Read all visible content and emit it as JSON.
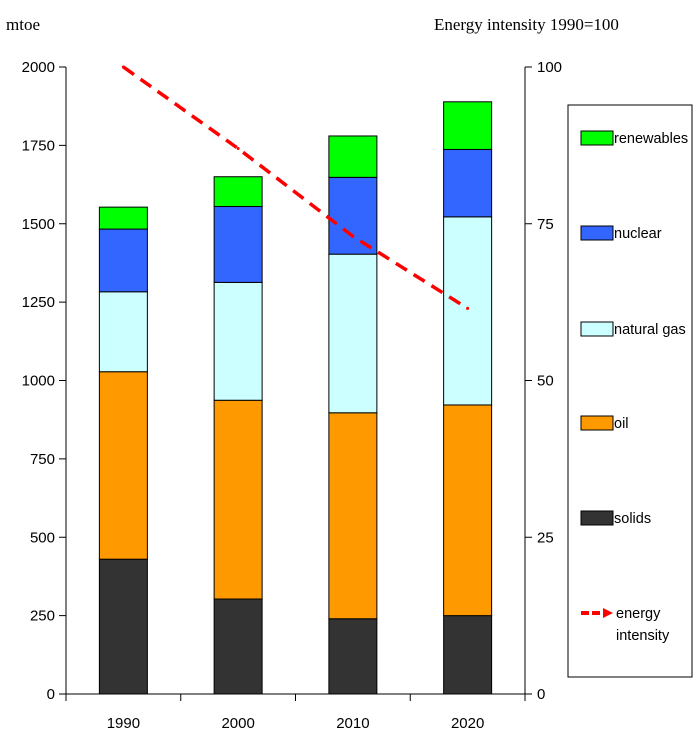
{
  "chart_data": {
    "type": "bar",
    "stacked": true,
    "left_axis_unit": "mtoe",
    "right_axis_unit": "Energy intensity 1990=100",
    "categories": [
      "1990",
      "2000",
      "2010",
      "2020"
    ],
    "y_left": {
      "range": [
        0,
        2000
      ],
      "ticks": [
        "0",
        "250",
        "500",
        "750",
        "1000",
        "1250",
        "1500",
        "1750",
        "2000"
      ]
    },
    "y_right": {
      "range": [
        0,
        100
      ],
      "ticks": [
        "0",
        "25",
        "50",
        "75",
        "100"
      ]
    },
    "series": [
      {
        "name": "solids",
        "color": "#333333",
        "values": [
          430,
          303,
          240,
          250
        ]
      },
      {
        "name": "oil",
        "color": "#ff9900",
        "values": [
          598,
          634,
          657,
          672
        ]
      },
      {
        "name": "natural gas",
        "color": "#ccffff",
        "values": [
          255,
          376,
          506,
          600
        ]
      },
      {
        "name": "nuclear",
        "color": "#3366ff",
        "values": [
          200,
          242,
          245,
          215
        ]
      },
      {
        "name": "renewables",
        "color": "#00ff00",
        "values": [
          70,
          95,
          132,
          152
        ]
      }
    ],
    "line_series": {
      "name": "energy intensity",
      "legend_lines": [
        "energy",
        "intensity"
      ],
      "color": "#ff0000",
      "style": "dashed",
      "axis": "right",
      "values": [
        100,
        87,
        73,
        61.5
      ]
    },
    "legend_order": [
      "renewables",
      "nuclear",
      "natural gas",
      "oil",
      "solids",
      "energy intensity"
    ],
    "legend_position": "right",
    "grid": false
  }
}
